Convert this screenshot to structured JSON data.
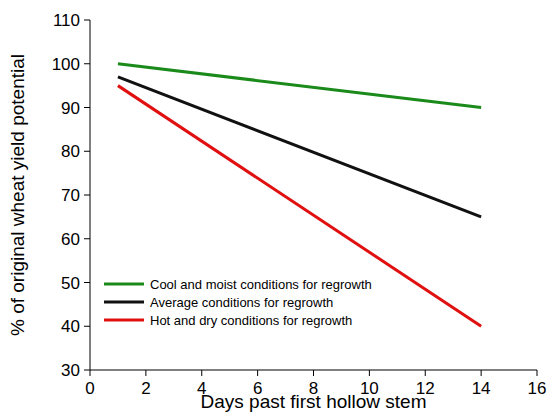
{
  "chart_data": {
    "type": "line",
    "x_label": "Days past first hollow stem",
    "y_label": "% of original wheat yield potential",
    "x": [
      1,
      14
    ],
    "series": [
      {
        "name": "Cool and moist conditions for regrowth",
        "color": "#1a8a1a",
        "values": [
          100,
          90
        ]
      },
      {
        "name": "Average conditions for regrowth",
        "color": "#111111",
        "values": [
          97,
          65
        ]
      },
      {
        "name": "Hot and dry conditions for regrowth",
        "color": "#e01010",
        "values": [
          95,
          40
        ]
      }
    ],
    "xlim": [
      0,
      16
    ],
    "xticks": [
      0,
      2,
      4,
      6,
      8,
      10,
      12,
      14,
      16
    ],
    "ylim": [
      30,
      110
    ],
    "yticks": [
      30,
      40,
      50,
      60,
      70,
      80,
      90,
      100,
      110
    ],
    "grid": false,
    "legend": "lower left"
  }
}
